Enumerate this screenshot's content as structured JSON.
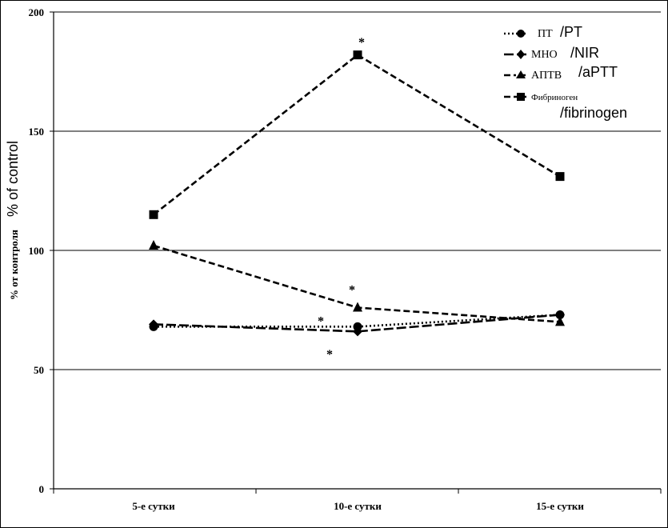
{
  "chart_data": {
    "type": "line",
    "categories": [
      "5-е сутки",
      "10-е сутки",
      "15-е сутки"
    ],
    "ylabel_ru": "% от контроля",
    "ylabel_en": "% of control",
    "ylim": [
      0,
      200
    ],
    "yticks": [
      "0",
      "50",
      "100",
      "150",
      "200"
    ],
    "grid": true,
    "legend_position": "top-right",
    "series": [
      {
        "name_ru": "ПТ",
        "name_en": "/PT",
        "values": [
          68,
          68,
          73
        ],
        "marker": "circle",
        "dash": "dotted"
      },
      {
        "name_ru": "МНО",
        "name_en": "/NIR",
        "values": [
          69,
          66,
          73
        ],
        "marker": "diamond",
        "dash": "longdash"
      },
      {
        "name_ru": "АПТВ",
        "name_en": "/aPTT",
        "values": [
          102,
          76,
          70
        ],
        "marker": "triangle",
        "dash": "dashed"
      },
      {
        "name_ru": "Фибриноген",
        "name_en": "/fibrinogen",
        "values": [
          115,
          182,
          131
        ],
        "marker": "square",
        "dash": "dashed"
      }
    ],
    "annotations": [
      {
        "text": "*",
        "category": "10-е сутки",
        "y": 189
      },
      {
        "text": "*",
        "category": "10-е сутки",
        "y": 85
      },
      {
        "text": "*",
        "category": "10-е сутки",
        "y": 72
      },
      {
        "text": "*",
        "category": "10-е сутки",
        "y": 58
      }
    ]
  }
}
